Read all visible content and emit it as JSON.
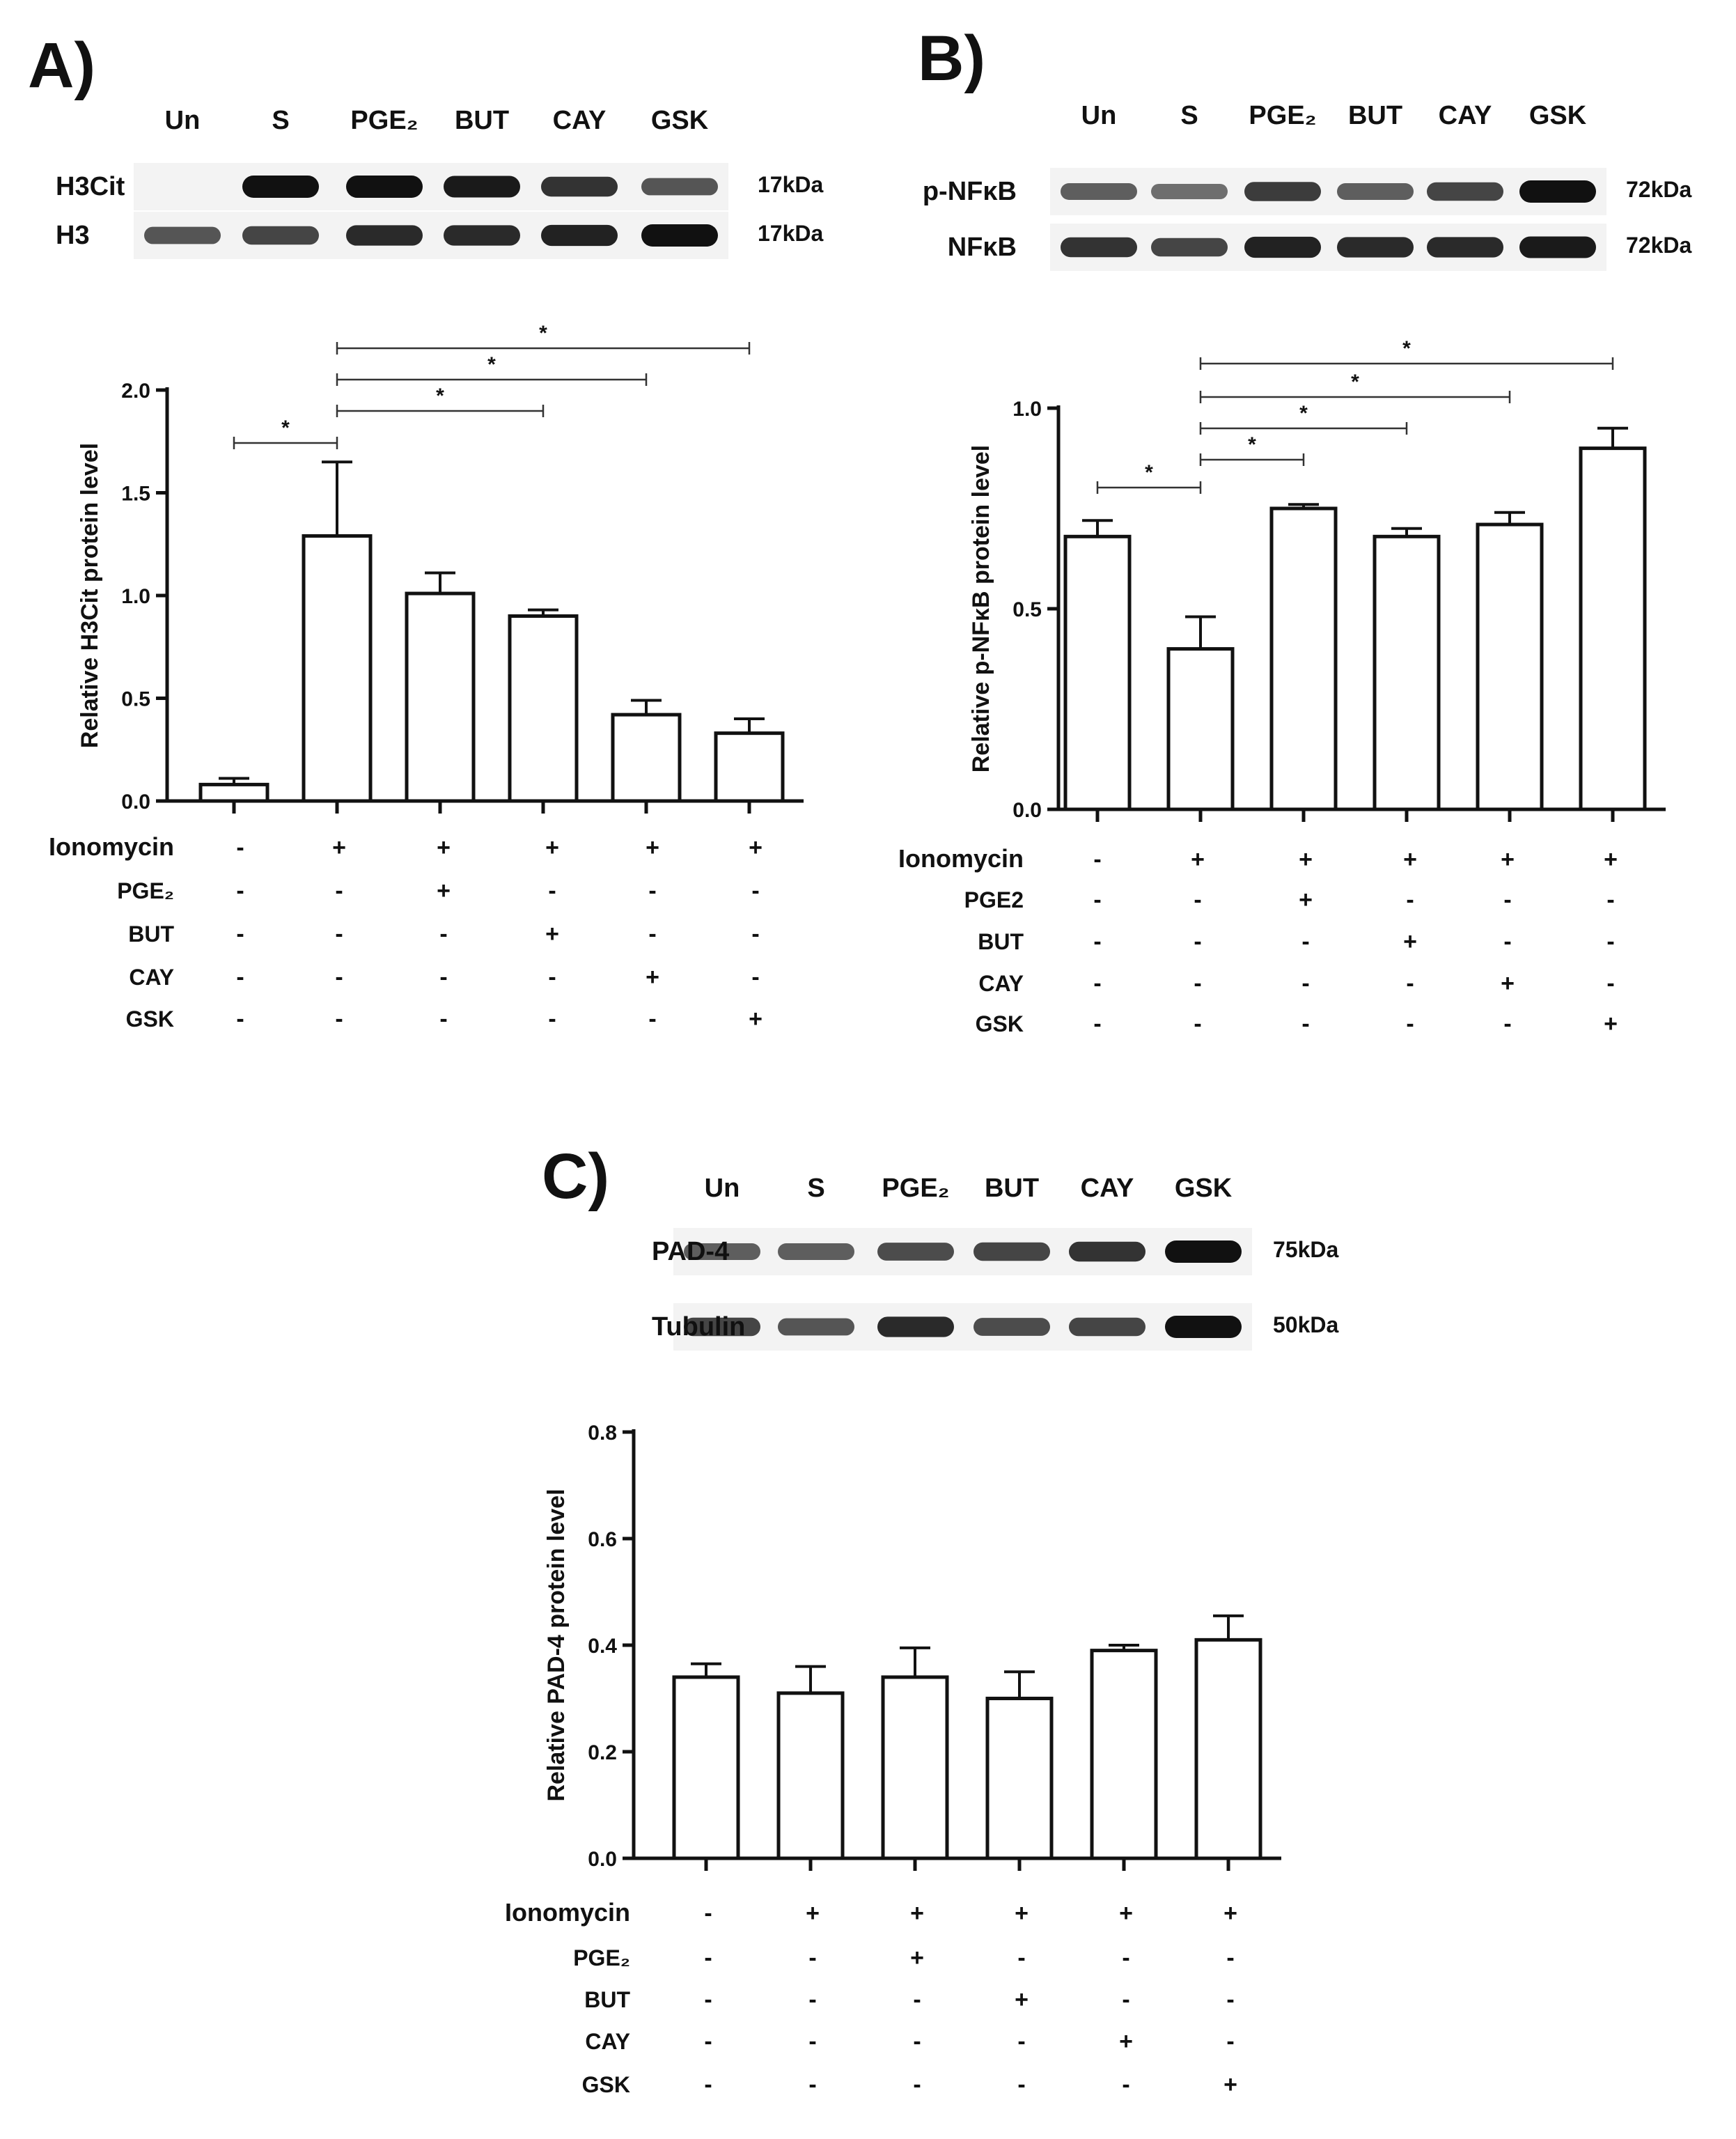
{
  "panels": [
    {
      "id": "A",
      "label": "A)",
      "lanes": [
        "Un",
        "S",
        "PGE₂",
        "BUT",
        "CAY",
        "GSK"
      ],
      "blot_rows": [
        {
          "name": "H3Cit",
          "kda": "17kDa",
          "intensity": [
            0.0,
            1.0,
            1.0,
            0.95,
            0.8,
            0.6
          ]
        },
        {
          "name": "H3",
          "kda": "17kDa",
          "intensity": [
            0.6,
            0.7,
            0.85,
            0.85,
            0.9,
            1.0
          ]
        }
      ],
      "treatments": {
        "rows": [
          "Ionomycin",
          "PGE₂",
          "BUT",
          "CAY",
          "GSK"
        ],
        "signs": [
          [
            "-",
            "+",
            "+",
            "+",
            "+",
            "+"
          ],
          [
            "-",
            "-",
            "+",
            "-",
            "-",
            "-"
          ],
          [
            "-",
            "-",
            "-",
            "+",
            "-",
            "-"
          ],
          [
            "-",
            "-",
            "-",
            "-",
            "+",
            "-"
          ],
          [
            "-",
            "-",
            "-",
            "-",
            "-",
            "+"
          ]
        ]
      }
    },
    {
      "id": "B",
      "label": "B)",
      "lanes": [
        "Un",
        "S",
        "PGE₂",
        "BUT",
        "CAY",
        "GSK"
      ],
      "blot_rows": [
        {
          "name": "p-NFκB",
          "kda": "72kDa",
          "intensity": [
            0.55,
            0.45,
            0.75,
            0.55,
            0.7,
            1.0
          ]
        },
        {
          "name": "NFκB",
          "kda": "72kDa",
          "intensity": [
            0.8,
            0.7,
            0.9,
            0.85,
            0.85,
            0.95
          ]
        }
      ],
      "treatments": {
        "rows": [
          "Ionomycin",
          "PGE2",
          "BUT",
          "CAY",
          "GSK"
        ],
        "signs": [
          [
            "-",
            "+",
            "+",
            "+",
            "+",
            "+"
          ],
          [
            "-",
            "-",
            "+",
            "-",
            "-",
            "-"
          ],
          [
            "-",
            "-",
            "-",
            "+",
            "-",
            "-"
          ],
          [
            "-",
            "-",
            "-",
            "-",
            "+",
            "-"
          ],
          [
            "-",
            "-",
            "-",
            "-",
            "-",
            "+"
          ]
        ]
      }
    },
    {
      "id": "C",
      "label": "C)",
      "lanes": [
        "Un",
        "S",
        "PGE₂",
        "BUT",
        "CAY",
        "GSK"
      ],
      "blot_rows": [
        {
          "name": "PAD-4",
          "kda": "75kDa",
          "intensity": [
            0.55,
            0.55,
            0.65,
            0.7,
            0.8,
            1.0
          ]
        },
        {
          "name": "Tubulin",
          "kda": "50kDa",
          "intensity": [
            0.7,
            0.6,
            0.85,
            0.65,
            0.7,
            1.0
          ]
        }
      ],
      "treatments": {
        "rows": [
          "Ionomycin",
          "PGE₂",
          "BUT",
          "CAY",
          "GSK"
        ],
        "signs": [
          [
            "-",
            "+",
            "+",
            "+",
            "+",
            "+"
          ],
          [
            "-",
            "-",
            "+",
            "-",
            "-",
            "-"
          ],
          [
            "-",
            "-",
            "-",
            "+",
            "-",
            "-"
          ],
          [
            "-",
            "-",
            "-",
            "-",
            "+",
            "-"
          ],
          [
            "-",
            "-",
            "-",
            "-",
            "-",
            "+"
          ]
        ]
      }
    }
  ],
  "chart_data": [
    {
      "type": "bar",
      "panel": "A",
      "ylabel": "Relative H3Cit protein level",
      "ylim": [
        0,
        2.0
      ],
      "yticks": [
        "0.0",
        "0.5",
        "1.0",
        "1.5",
        "2.0"
      ],
      "values": [
        0.08,
        1.29,
        1.01,
        0.9,
        0.42,
        0.33
      ],
      "errors": [
        0.03,
        0.36,
        0.1,
        0.03,
        0.07,
        0.07
      ],
      "significance": [
        {
          "from": 0,
          "to": 1,
          "label": "*"
        },
        {
          "from": 1,
          "to": 3,
          "label": "*"
        },
        {
          "from": 1,
          "to": 4,
          "label": "*"
        },
        {
          "from": 1,
          "to": 5,
          "label": "*"
        }
      ]
    },
    {
      "type": "bar",
      "panel": "B",
      "ylabel": "Relative p-NFκB protein level",
      "ylim": [
        0,
        1.0
      ],
      "yticks": [
        "0.0",
        "0.5",
        "1.0"
      ],
      "values": [
        0.68,
        0.4,
        0.75,
        0.68,
        0.71,
        0.9
      ],
      "errors": [
        0.04,
        0.08,
        0.01,
        0.02,
        0.03,
        0.05
      ],
      "significance": [
        {
          "from": 0,
          "to": 1,
          "label": "*"
        },
        {
          "from": 1,
          "to": 2,
          "label": "*"
        },
        {
          "from": 1,
          "to": 3,
          "label": "*"
        },
        {
          "from": 1,
          "to": 4,
          "label": "*"
        },
        {
          "from": 1,
          "to": 5,
          "label": "*"
        }
      ]
    },
    {
      "type": "bar",
      "panel": "C",
      "ylabel": "Relative PAD-4 protein level",
      "ylim": [
        0,
        0.8
      ],
      "yticks": [
        "0.0",
        "0.2",
        "0.4",
        "0.6",
        "0.8"
      ],
      "values": [
        0.34,
        0.31,
        0.34,
        0.3,
        0.39,
        0.41
      ],
      "errors": [
        0.025,
        0.05,
        0.055,
        0.05,
        0.01,
        0.045
      ],
      "significance": []
    }
  ]
}
